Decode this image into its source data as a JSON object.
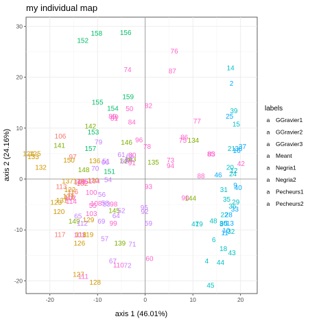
{
  "chart_data": {
    "type": "scatter",
    "title": "my individual map",
    "xlabel": "axis 1 (46.01%)",
    "ylabel": "axis 2 (24.16%)",
    "xlim": [
      -25,
      23.5
    ],
    "ylim": [
      -22.5,
      31.8
    ],
    "xticks": [
      -20,
      -10,
      0,
      10,
      20
    ],
    "yticks": [
      -20,
      -10,
      0,
      10,
      20,
      30
    ],
    "grid": true,
    "reference_lines": {
      "x": 0,
      "y": 0
    },
    "legend": {
      "title": "labels",
      "position": "right",
      "glyph": "a"
    },
    "series": [
      {
        "name": "GGravier1",
        "color": "#F8766D",
        "points": [
          {
            "label": "106",
            "x": -17.8,
            "y": 8.4
          },
          {
            "label": "97",
            "x": -15.2,
            "y": 4.4
          },
          {
            "label": "102",
            "x": -13.2,
            "y": -0.9
          },
          {
            "label": "116",
            "x": -15.2,
            "y": -2.5
          },
          {
            "label": "115",
            "x": -15.9,
            "y": -3.6
          },
          {
            "label": "117",
            "x": -17.9,
            "y": -10.9
          },
          {
            "label": "113",
            "x": -17.6,
            "y": -1.5
          }
        ]
      },
      {
        "name": "GGravier2",
        "color": "#CD9600",
        "points": [
          {
            "label": "124",
            "x": -24.5,
            "y": 5.0
          },
          {
            "label": "125",
            "x": -23.1,
            "y": 5.0
          },
          {
            "label": "133",
            "x": -23.5,
            "y": 4.4
          },
          {
            "label": "132",
            "x": -21.9,
            "y": 2.3
          },
          {
            "label": "150",
            "x": -16.0,
            "y": 3.7
          },
          {
            "label": "122",
            "x": -15.8,
            "y": -2.1
          },
          {
            "label": "121",
            "x": -16.1,
            "y": -3.4
          },
          {
            "label": "131",
            "x": -17.5,
            "y": -4.2
          },
          {
            "label": "123",
            "x": -18.7,
            "y": -4.6
          },
          {
            "label": "120",
            "x": -18.1,
            "y": -6.4
          },
          {
            "label": "138",
            "x": -13.9,
            "y": -0.4
          },
          {
            "label": "137",
            "x": -16.3,
            "y": -0.4
          },
          {
            "label": "118",
            "x": -13.5,
            "y": -10.9
          },
          {
            "label": "119",
            "x": -12.0,
            "y": -10.9
          },
          {
            "label": "126",
            "x": -13.8,
            "y": -12.6
          },
          {
            "label": "127",
            "x": -14.0,
            "y": -18.7
          },
          {
            "label": "128",
            "x": -10.5,
            "y": -20.3
          },
          {
            "label": "129",
            "x": -11.9,
            "y": -8.0
          },
          {
            "label": "130",
            "x": -10.9,
            "y": -0.3
          },
          {
            "label": "136",
            "x": -10.6,
            "y": 3.6
          }
        ]
      },
      {
        "name": "GGravier3",
        "color": "#7CAE00",
        "points": [
          {
            "label": "142",
            "x": -11.5,
            "y": 10.4
          },
          {
            "label": "141",
            "x": -18.0,
            "y": 6.6
          },
          {
            "label": "148",
            "x": -12.9,
            "y": 1.8
          },
          {
            "label": "149",
            "x": -14.9,
            "y": -8.3
          },
          {
            "label": "139",
            "x": -5.3,
            "y": -12.6
          },
          {
            "label": "134",
            "x": 10.1,
            "y": 7.6
          },
          {
            "label": "135",
            "x": 1.7,
            "y": 3.3
          },
          {
            "label": "144",
            "x": 9.5,
            "y": -3.8
          },
          {
            "label": "145",
            "x": -6.5,
            "y": -6.2
          },
          {
            "label": "146",
            "x": -3.9,
            "y": 7.2
          },
          {
            "label": "147",
            "x": -4.2,
            "y": 3.6
          },
          {
            "label": "143",
            "x": -3.1,
            "y": 3.9
          }
        ]
      },
      {
        "name": "Meant",
        "color": "#00BE67",
        "points": [
          {
            "label": "158",
            "x": -10.2,
            "y": 28.6
          },
          {
            "label": "156",
            "x": -4.1,
            "y": 28.8
          },
          {
            "label": "152",
            "x": -13.1,
            "y": 27.2
          },
          {
            "label": "159",
            "x": -3.6,
            "y": 16.2
          },
          {
            "label": "155",
            "x": -10.0,
            "y": 15.1
          },
          {
            "label": "154",
            "x": -6.8,
            "y": 13.9
          },
          {
            "label": "153",
            "x": -10.9,
            "y": 9.2
          },
          {
            "label": "157",
            "x": -11.5,
            "y": 6.0
          },
          {
            "label": "151",
            "x": -7.5,
            "y": 1.5
          }
        ]
      },
      {
        "name": "Negria1",
        "color": "#00BFC4",
        "points": [
          {
            "label": "14",
            "x": 17.9,
            "y": 21.8
          },
          {
            "label": "39",
            "x": 18.6,
            "y": 13.4
          },
          {
            "label": "15",
            "x": 19.1,
            "y": 10.8
          },
          {
            "label": "21",
            "x": 18.1,
            "y": 6.0
          },
          {
            "label": "20",
            "x": 17.8,
            "y": 2.3
          },
          {
            "label": "12",
            "x": 18.6,
            "y": 1.7
          },
          {
            "label": "24",
            "x": 18.4,
            "y": 1.0
          },
          {
            "label": "29",
            "x": 19.0,
            "y": -4.5
          },
          {
            "label": "31",
            "x": 16.5,
            "y": -2.1
          },
          {
            "label": "35",
            "x": 17.1,
            "y": -4.0
          },
          {
            "label": "36",
            "x": 18.3,
            "y": -5.3
          },
          {
            "label": "22",
            "x": 16.6,
            "y": -7.0
          },
          {
            "label": "48",
            "x": 14.3,
            "y": -8.2
          },
          {
            "label": "47",
            "x": 10.5,
            "y": -8.8
          },
          {
            "label": "19",
            "x": 11.3,
            "y": -8.8
          },
          {
            "label": "30",
            "x": 16.4,
            "y": -8.7
          },
          {
            "label": "32",
            "x": 18.0,
            "y": -10.3
          },
          {
            "label": "6",
            "x": 14.4,
            "y": -11.9
          },
          {
            "label": "18",
            "x": 16.4,
            "y": -13.7
          },
          {
            "label": "43",
            "x": 18.2,
            "y": -14.5
          },
          {
            "label": "4",
            "x": 12.9,
            "y": -16.1
          },
          {
            "label": "44",
            "x": 15.8,
            "y": -16.4
          },
          {
            "label": "45",
            "x": 13.7,
            "y": -20.9
          }
        ]
      },
      {
        "name": "Negria2",
        "color": "#00A9FF",
        "points": [
          {
            "label": "2",
            "x": 18.1,
            "y": 18.8
          },
          {
            "label": "25",
            "x": 17.7,
            "y": 12.3
          },
          {
            "label": "37",
            "x": 20.4,
            "y": 6.4
          },
          {
            "label": "38",
            "x": 19.6,
            "y": 6.0
          },
          {
            "label": "16",
            "x": 19.2,
            "y": 5.6
          },
          {
            "label": "46",
            "x": 15.3,
            "y": 0.8
          },
          {
            "label": "40",
            "x": 19.5,
            "y": -1.7
          },
          {
            "label": "9",
            "x": 18.9,
            "y": -1.2
          },
          {
            "label": "28",
            "x": 17.5,
            "y": -7.0
          },
          {
            "label": "33",
            "x": 18.8,
            "y": -5.9
          },
          {
            "label": "10",
            "x": 17.0,
            "y": -10.1
          },
          {
            "label": "11",
            "x": 16.7,
            "y": -10.6
          },
          {
            "label": "13",
            "x": 17.8,
            "y": -8.7
          },
          {
            "label": "8",
            "x": 16.0,
            "y": -8.8
          },
          {
            "label": "5",
            "x": 16.9,
            "y": -8.7
          }
        ]
      },
      {
        "name": "Pecheurs1",
        "color": "#C77CFF",
        "points": [
          {
            "label": "79",
            "x": -9.8,
            "y": 7.3
          },
          {
            "label": "61",
            "x": -5.0,
            "y": 4.8
          },
          {
            "label": "62",
            "x": -4.4,
            "y": 3.5
          },
          {
            "label": "68",
            "x": -3.2,
            "y": 4.5
          },
          {
            "label": "63",
            "x": -3.4,
            "y": 3.8
          },
          {
            "label": "66",
            "x": -8.4,
            "y": 3.3
          },
          {
            "label": "51",
            "x": -8.2,
            "y": 3.5
          },
          {
            "label": "54",
            "x": -7.8,
            "y": -0.1
          },
          {
            "label": "56",
            "x": -9.1,
            "y": -3.0
          },
          {
            "label": "53",
            "x": -8.1,
            "y": -4.9
          },
          {
            "label": "58",
            "x": -8.4,
            "y": -4.7
          },
          {
            "label": "52",
            "x": -5.0,
            "y": -6.2
          },
          {
            "label": "64",
            "x": -6.1,
            "y": -7.2
          },
          {
            "label": "65",
            "x": -14.1,
            "y": -7.3
          },
          {
            "label": "112",
            "x": -13.2,
            "y": -8.7
          },
          {
            "label": "69",
            "x": -9.2,
            "y": -8.3
          },
          {
            "label": "70",
            "x": -10.5,
            "y": 2.1
          },
          {
            "label": "71",
            "x": -2.7,
            "y": -12.8
          },
          {
            "label": "72",
            "x": -3.7,
            "y": -17.0
          },
          {
            "label": "67",
            "x": -6.8,
            "y": -16.1
          },
          {
            "label": "57",
            "x": -8.5,
            "y": -11.7
          },
          {
            "label": "59",
            "x": 0.7,
            "y": -8.7
          },
          {
            "label": "92",
            "x": -0.1,
            "y": -6.4
          },
          {
            "label": "95",
            "x": -0.2,
            "y": -5.6
          }
        ]
      },
      {
        "name": "Pecheurs2",
        "color": "#FF61CC",
        "points": [
          {
            "label": "76",
            "x": 6.1,
            "y": 25.1
          },
          {
            "label": "74",
            "x": -3.7,
            "y": 21.5
          },
          {
            "label": "87",
            "x": 5.7,
            "y": 21.2
          },
          {
            "label": "82",
            "x": 0.7,
            "y": 14.4
          },
          {
            "label": "50",
            "x": -3.3,
            "y": 13.8
          },
          {
            "label": "89",
            "x": -6.9,
            "y": 12.3
          },
          {
            "label": "81",
            "x": -6.5,
            "y": 11.9
          },
          {
            "label": "84",
            "x": -2.8,
            "y": 11.2
          },
          {
            "label": "77",
            "x": 10.9,
            "y": 11.4
          },
          {
            "label": "86",
            "x": 8.2,
            "y": 8.2
          },
          {
            "label": "75",
            "x": 7.9,
            "y": 7.6
          },
          {
            "label": "96",
            "x": -1.3,
            "y": 7.7
          },
          {
            "label": "78",
            "x": 0.4,
            "y": 6.4
          },
          {
            "label": "83",
            "x": 13.9,
            "y": 4.9
          },
          {
            "label": "85",
            "x": 13.8,
            "y": 4.9
          },
          {
            "label": "80",
            "x": -2.7,
            "y": 4.7
          },
          {
            "label": "91",
            "x": -2.8,
            "y": 3.2
          },
          {
            "label": "94",
            "x": 5.3,
            "y": 2.6
          },
          {
            "label": "73",
            "x": 5.3,
            "y": 3.7
          },
          {
            "label": "88",
            "x": 11.7,
            "y": 0.6
          },
          {
            "label": "93",
            "x": 0.7,
            "y": -1.5
          },
          {
            "label": "90",
            "x": 8.4,
            "y": -3.7
          },
          {
            "label": "98",
            "x": -6.6,
            "y": -4.9
          },
          {
            "label": "99",
            "x": -6.7,
            "y": -8.7
          },
          {
            "label": "100",
            "x": -11.3,
            "y": -2.6
          },
          {
            "label": "104",
            "x": -10.7,
            "y": -0.4
          },
          {
            "label": "105",
            "x": -13.1,
            "y": -0.5
          },
          {
            "label": "103",
            "x": -11.3,
            "y": -6.8
          },
          {
            "label": "101",
            "x": -13.8,
            "y": -11.0
          },
          {
            "label": "107",
            "x": -15.7,
            "y": -3.8
          },
          {
            "label": "108",
            "x": -10.3,
            "y": -4.8
          },
          {
            "label": "109",
            "x": -13.7,
            "y": -0.6
          },
          {
            "label": "110",
            "x": -5.6,
            "y": -16.9
          },
          {
            "label": "111",
            "x": -13.0,
            "y": -19.1
          },
          {
            "label": "114",
            "x": -15.5,
            "y": -4.4
          },
          {
            "label": "49",
            "x": -6.4,
            "y": 12.2
          },
          {
            "label": "60",
            "x": 0.9,
            "y": -15.6
          },
          {
            "label": "55",
            "x": -11.0,
            "y": -5.2
          },
          {
            "label": "42",
            "x": 20.1,
            "y": 3.0
          }
        ]
      }
    ]
  }
}
